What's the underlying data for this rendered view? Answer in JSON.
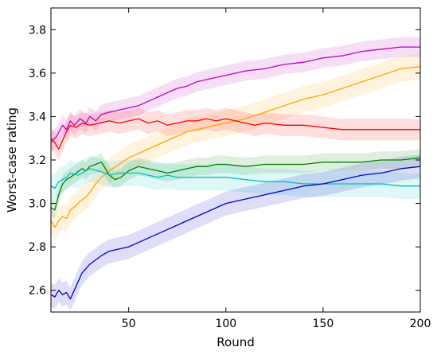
{
  "chart_data": {
    "type": "line",
    "title": "",
    "xlabel": "Round",
    "ylabel": "Worst-case rating",
    "xlim": [
      10,
      200
    ],
    "ylim": [
      2.5,
      3.9
    ],
    "xticks": [
      50,
      100,
      150,
      200
    ],
    "yticks": [
      2.6,
      2.8,
      3.0,
      3.2,
      3.4,
      3.6,
      3.8
    ],
    "grid": false,
    "legend": "none",
    "band_opacity": 0.13,
    "series": [
      {
        "color": "#bf00bf",
        "band": 0.045,
        "points": [
          [
            10,
            3.28
          ],
          [
            13,
            3.31
          ],
          [
            16,
            3.36
          ],
          [
            18,
            3.34
          ],
          [
            20,
            3.38
          ],
          [
            22,
            3.36
          ],
          [
            25,
            3.39
          ],
          [
            28,
            3.37
          ],
          [
            30,
            3.4
          ],
          [
            33,
            3.38
          ],
          [
            36,
            3.41
          ],
          [
            40,
            3.42
          ],
          [
            45,
            3.43
          ],
          [
            50,
            3.44
          ],
          [
            55,
            3.45
          ],
          [
            60,
            3.47
          ],
          [
            65,
            3.49
          ],
          [
            70,
            3.51
          ],
          [
            75,
            3.53
          ],
          [
            80,
            3.54
          ],
          [
            85,
            3.56
          ],
          [
            90,
            3.57
          ],
          [
            95,
            3.58
          ],
          [
            100,
            3.59
          ],
          [
            110,
            3.61
          ],
          [
            120,
            3.62
          ],
          [
            130,
            3.64
          ],
          [
            140,
            3.65
          ],
          [
            150,
            3.67
          ],
          [
            160,
            3.68
          ],
          [
            170,
            3.7
          ],
          [
            180,
            3.71
          ],
          [
            190,
            3.72
          ],
          [
            200,
            3.72
          ]
        ]
      },
      {
        "color": "#ffa500",
        "band": 0.06,
        "points": [
          [
            10,
            2.92
          ],
          [
            12,
            2.89
          ],
          [
            14,
            2.92
          ],
          [
            16,
            2.94
          ],
          [
            18,
            2.93
          ],
          [
            20,
            2.97
          ],
          [
            23,
            2.99
          ],
          [
            25,
            3.01
          ],
          [
            28,
            3.03
          ],
          [
            30,
            3.05
          ],
          [
            33,
            3.09
          ],
          [
            36,
            3.12
          ],
          [
            40,
            3.15
          ],
          [
            45,
            3.18
          ],
          [
            50,
            3.21
          ],
          [
            55,
            3.23
          ],
          [
            60,
            3.25
          ],
          [
            65,
            3.27
          ],
          [
            70,
            3.29
          ],
          [
            75,
            3.31
          ],
          [
            80,
            3.33
          ],
          [
            85,
            3.34
          ],
          [
            90,
            3.35
          ],
          [
            95,
            3.36
          ],
          [
            100,
            3.37
          ],
          [
            110,
            3.39
          ],
          [
            120,
            3.42
          ],
          [
            130,
            3.45
          ],
          [
            140,
            3.48
          ],
          [
            150,
            3.5
          ],
          [
            160,
            3.53
          ],
          [
            170,
            3.56
          ],
          [
            180,
            3.59
          ],
          [
            190,
            3.62
          ],
          [
            200,
            3.63
          ]
        ]
      },
      {
        "color": "#ff0000",
        "band": 0.05,
        "points": [
          [
            10,
            3.3
          ],
          [
            12,
            3.28
          ],
          [
            14,
            3.25
          ],
          [
            16,
            3.29
          ],
          [
            18,
            3.33
          ],
          [
            20,
            3.36
          ],
          [
            23,
            3.35
          ],
          [
            26,
            3.37
          ],
          [
            30,
            3.36
          ],
          [
            35,
            3.37
          ],
          [
            40,
            3.38
          ],
          [
            45,
            3.37
          ],
          [
            50,
            3.38
          ],
          [
            55,
            3.39
          ],
          [
            60,
            3.37
          ],
          [
            65,
            3.38
          ],
          [
            70,
            3.36
          ],
          [
            75,
            3.37
          ],
          [
            80,
            3.38
          ],
          [
            85,
            3.38
          ],
          [
            90,
            3.39
          ],
          [
            95,
            3.38
          ],
          [
            100,
            3.39
          ],
          [
            105,
            3.38
          ],
          [
            110,
            3.37
          ],
          [
            115,
            3.36
          ],
          [
            120,
            3.37
          ],
          [
            130,
            3.36
          ],
          [
            140,
            3.36
          ],
          [
            150,
            3.35
          ],
          [
            160,
            3.34
          ],
          [
            170,
            3.34
          ],
          [
            180,
            3.34
          ],
          [
            190,
            3.34
          ],
          [
            200,
            3.34
          ]
        ]
      },
      {
        "color": "#008000",
        "band": 0.04,
        "points": [
          [
            10,
            2.98
          ],
          [
            12,
            2.97
          ],
          [
            14,
            3.04
          ],
          [
            16,
            3.09
          ],
          [
            18,
            3.11
          ],
          [
            20,
            3.12
          ],
          [
            23,
            3.14
          ],
          [
            26,
            3.16
          ],
          [
            28,
            3.15
          ],
          [
            30,
            3.17
          ],
          [
            33,
            3.18
          ],
          [
            36,
            3.19
          ],
          [
            38,
            3.16
          ],
          [
            40,
            3.13
          ],
          [
            43,
            3.11
          ],
          [
            46,
            3.12
          ],
          [
            50,
            3.15
          ],
          [
            55,
            3.17
          ],
          [
            60,
            3.16
          ],
          [
            65,
            3.15
          ],
          [
            70,
            3.14
          ],
          [
            75,
            3.15
          ],
          [
            80,
            3.16
          ],
          [
            85,
            3.17
          ],
          [
            90,
            3.17
          ],
          [
            95,
            3.18
          ],
          [
            100,
            3.18
          ],
          [
            110,
            3.17
          ],
          [
            120,
            3.18
          ],
          [
            130,
            3.18
          ],
          [
            140,
            3.18
          ],
          [
            150,
            3.19
          ],
          [
            160,
            3.19
          ],
          [
            170,
            3.19
          ],
          [
            180,
            3.2
          ],
          [
            190,
            3.2
          ],
          [
            200,
            3.21
          ]
        ]
      },
      {
        "color": "#00bfbf",
        "band": 0.06,
        "points": [
          [
            10,
            3.08
          ],
          [
            12,
            3.07
          ],
          [
            14,
            3.1
          ],
          [
            16,
            3.11
          ],
          [
            18,
            3.12
          ],
          [
            20,
            3.14
          ],
          [
            24,
            3.13
          ],
          [
            28,
            3.15
          ],
          [
            30,
            3.16
          ],
          [
            34,
            3.15
          ],
          [
            38,
            3.14
          ],
          [
            40,
            3.13
          ],
          [
            45,
            3.14
          ],
          [
            50,
            3.14
          ],
          [
            55,
            3.14
          ],
          [
            60,
            3.13
          ],
          [
            65,
            3.12
          ],
          [
            70,
            3.13
          ],
          [
            75,
            3.12
          ],
          [
            80,
            3.12
          ],
          [
            85,
            3.12
          ],
          [
            90,
            3.12
          ],
          [
            100,
            3.12
          ],
          [
            110,
            3.11
          ],
          [
            120,
            3.1
          ],
          [
            130,
            3.1
          ],
          [
            140,
            3.09
          ],
          [
            150,
            3.09
          ],
          [
            160,
            3.09
          ],
          [
            170,
            3.09
          ],
          [
            180,
            3.09
          ],
          [
            190,
            3.08
          ],
          [
            200,
            3.08
          ]
        ]
      },
      {
        "color": "#0000cc",
        "band": 0.055,
        "points": [
          [
            10,
            2.58
          ],
          [
            12,
            2.57
          ],
          [
            14,
            2.6
          ],
          [
            16,
            2.58
          ],
          [
            18,
            2.59
          ],
          [
            20,
            2.56
          ],
          [
            22,
            2.6
          ],
          [
            24,
            2.64
          ],
          [
            26,
            2.68
          ],
          [
            28,
            2.7
          ],
          [
            30,
            2.72
          ],
          [
            33,
            2.74
          ],
          [
            36,
            2.76
          ],
          [
            40,
            2.78
          ],
          [
            45,
            2.79
          ],
          [
            50,
            2.8
          ],
          [
            55,
            2.82
          ],
          [
            60,
            2.84
          ],
          [
            65,
            2.86
          ],
          [
            70,
            2.88
          ],
          [
            75,
            2.9
          ],
          [
            80,
            2.92
          ],
          [
            85,
            2.94
          ],
          [
            90,
            2.96
          ],
          [
            95,
            2.98
          ],
          [
            100,
            3.0
          ],
          [
            110,
            3.02
          ],
          [
            120,
            3.04
          ],
          [
            130,
            3.06
          ],
          [
            140,
            3.08
          ],
          [
            150,
            3.09
          ],
          [
            160,
            3.11
          ],
          [
            170,
            3.13
          ],
          [
            180,
            3.14
          ],
          [
            190,
            3.16
          ],
          [
            200,
            3.17
          ]
        ]
      }
    ]
  }
}
